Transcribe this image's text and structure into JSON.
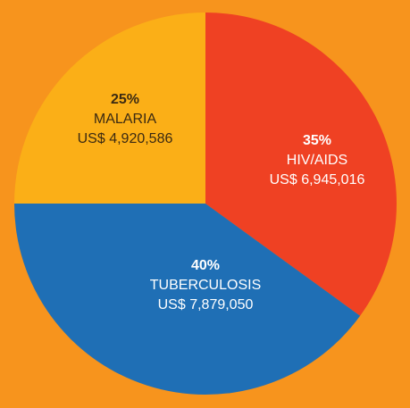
{
  "chart_data": {
    "type": "pie",
    "categories": [
      "HIV/AIDS",
      "TUBERCULOSIS",
      "MALARIA"
    ],
    "values": [
      35,
      40,
      25
    ],
    "value_labels": [
      "35%",
      "40%",
      "25%"
    ],
    "amounts": [
      6945016,
      7879050,
      4920586
    ],
    "amount_labels": [
      "US$ 6,945,016",
      "US$ 7,879,050",
      "US$ 4,920,586"
    ],
    "colors": [
      "#EF4123",
      "#1F6FB5",
      "#FBAF17"
    ]
  }
}
